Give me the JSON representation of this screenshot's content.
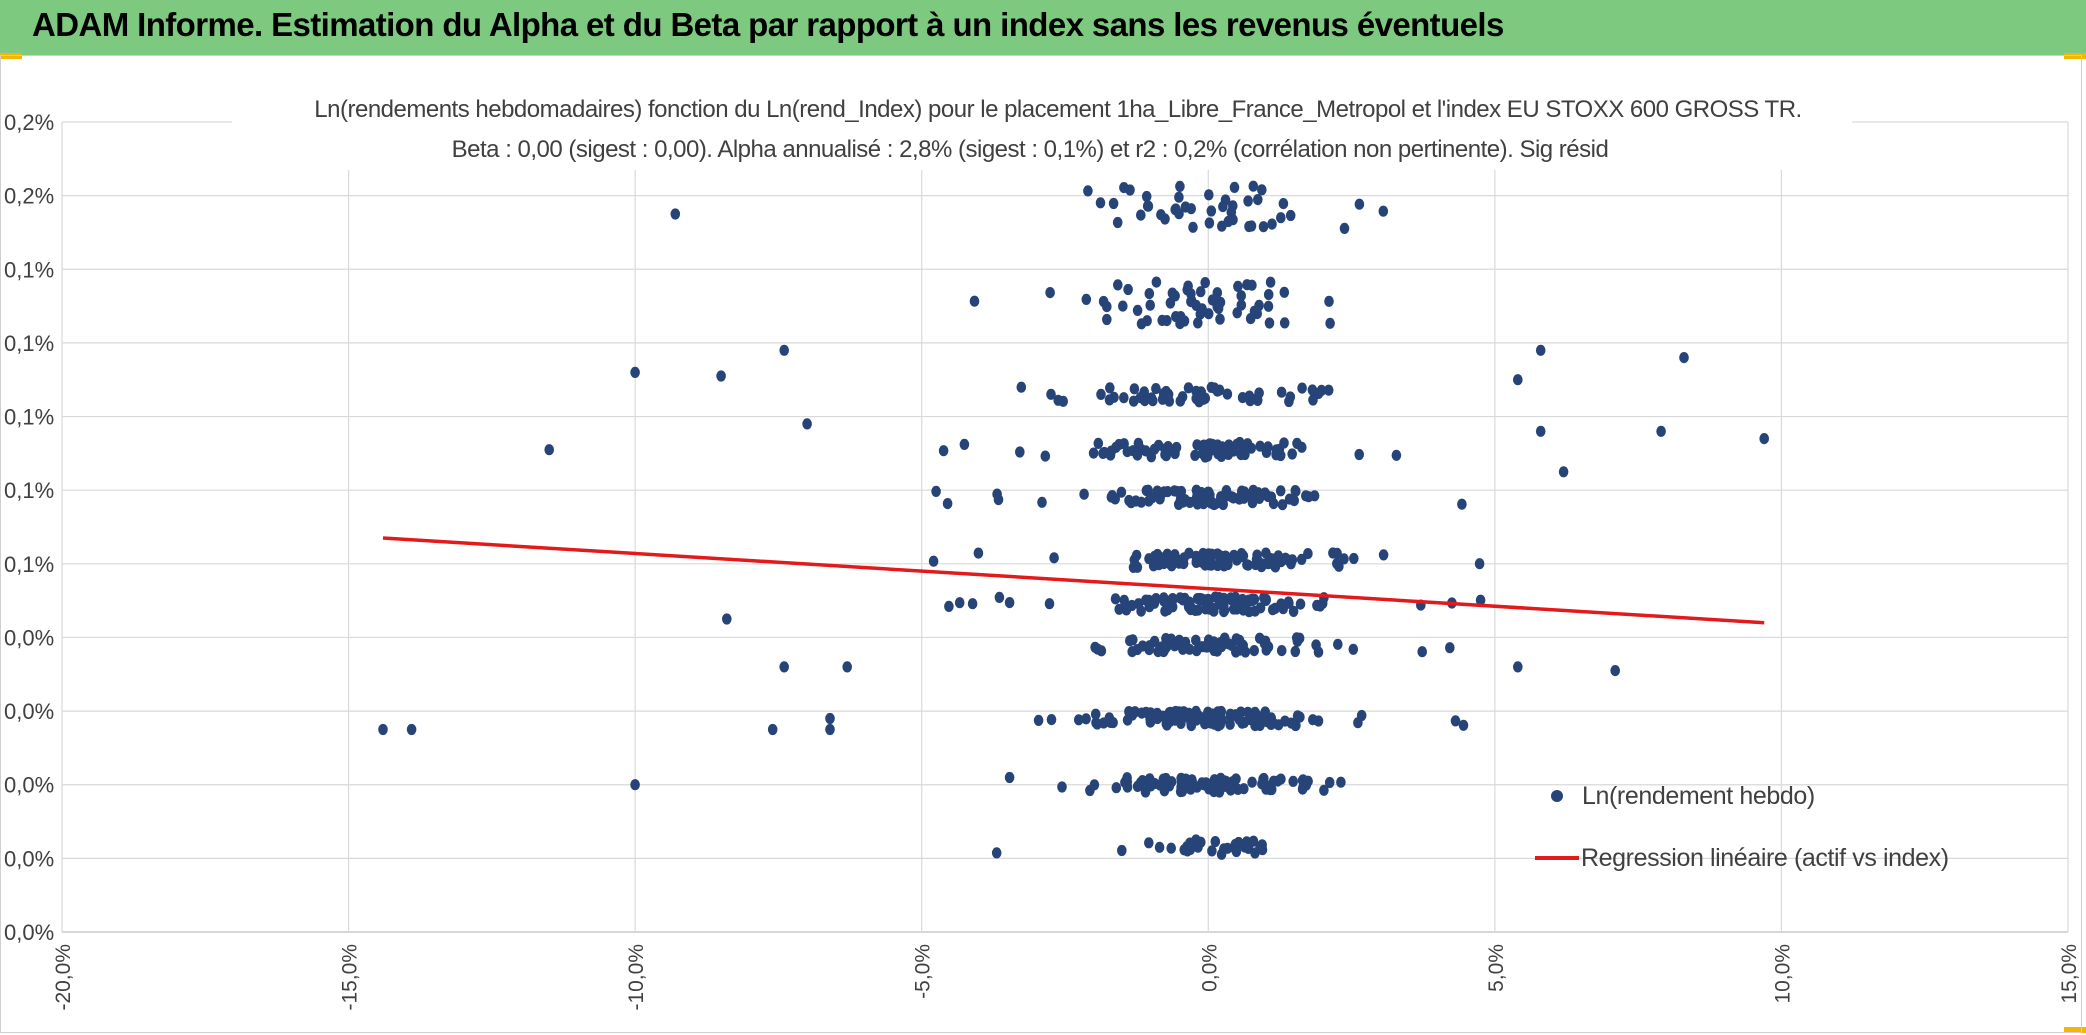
{
  "header": {
    "title": "ADAM Informe. Estimation du Alpha et du Beta par rapport à un index sans les revenus éventuels"
  },
  "colors": {
    "banner": "#7dc97f",
    "accent": "#f2b705",
    "points": "#264478",
    "regression": "#e31a1c",
    "grid": "#d9d9d9"
  },
  "chart_data": {
    "type": "scatter",
    "title": "Ln(rendements hebdomadaires) fonction du Ln(rend_Index) pour le placement 1ha_Libre_France_Metropol et l'index EU STOXX 600 GROSS TR.",
    "subtitle": "Beta : 0,00 (sigest : 0,00). Alpha annualisé : 2,8% (sigest : 0,1%) et r2 : 0,2% (corrélation non pertinente). Sig résid",
    "xlabel": "",
    "ylabel": "",
    "xlim": [
      -0.2,
      0.15
    ],
    "ylim": [
      0.0,
      0.0022
    ],
    "x_ticks": [
      "-20,0%",
      "-15,0%",
      "-10,0%",
      "-5,0%",
      "0,0%",
      "5,0%",
      "10,0%",
      "15,0%"
    ],
    "y_ticks": [
      "0,0%",
      "0,0%",
      "0,0%",
      "0,0%",
      "0,0%",
      "0,1%",
      "0,1%",
      "0,1%",
      "0,1%",
      "0,1%",
      "0,2%",
      "0,2%"
    ],
    "grid": true,
    "legend_position": "bottom-right",
    "series": [
      {
        "name": "Ln(rendement hebdo)",
        "style": "markers",
        "summary": "about 1200 weekly points; x concentrated between -3% and +3%, y values clustered on discrete bands",
        "y_bands": [
          0.00023,
          0.0004,
          0.00058,
          0.00078,
          0.00089,
          0.00101,
          0.00118,
          0.00131,
          0.00146,
          0.00171,
          0.00197
        ],
        "outliers": [
          {
            "x": -0.144,
            "y": 0.00055
          },
          {
            "x": -0.139,
            "y": 0.00055
          },
          {
            "x": -0.115,
            "y": 0.00131
          },
          {
            "x": -0.1,
            "y": 0.00152
          },
          {
            "x": -0.1,
            "y": 0.0004
          },
          {
            "x": -0.093,
            "y": 0.00195
          },
          {
            "x": -0.085,
            "y": 0.00151
          },
          {
            "x": -0.084,
            "y": 0.00085
          },
          {
            "x": -0.076,
            "y": 0.00055
          },
          {
            "x": -0.074,
            "y": 0.00072
          },
          {
            "x": -0.074,
            "y": 0.00158
          },
          {
            "x": -0.07,
            "y": 0.00138
          },
          {
            "x": -0.066,
            "y": 0.00058
          },
          {
            "x": -0.066,
            "y": 0.00055
          },
          {
            "x": -0.063,
            "y": 0.00072
          },
          {
            "x": 0.054,
            "y": 0.0015
          },
          {
            "x": 0.054,
            "y": 0.00072
          },
          {
            "x": 0.058,
            "y": 0.00136
          },
          {
            "x": 0.058,
            "y": 0.00158
          },
          {
            "x": 0.062,
            "y": 0.00125
          },
          {
            "x": 0.071,
            "y": 0.00071
          },
          {
            "x": 0.079,
            "y": 0.00136
          },
          {
            "x": 0.083,
            "y": 0.00156
          },
          {
            "x": 0.097,
            "y": 0.00134
          }
        ]
      },
      {
        "name": "Regression linéaire (actif vs index)",
        "style": "line",
        "points": [
          {
            "x": -0.144,
            "y": 0.00107
          },
          {
            "x": 0.097,
            "y": 0.00084
          }
        ]
      }
    ]
  }
}
